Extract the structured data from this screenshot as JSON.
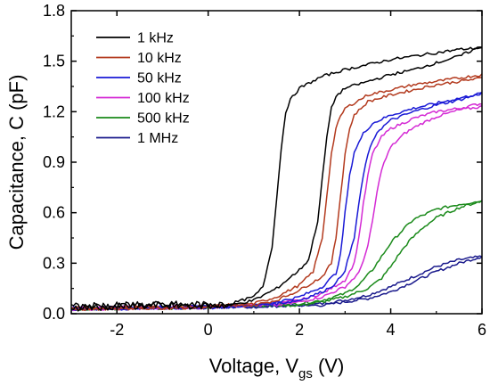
{
  "chart_data": {
    "type": "line",
    "xlabel": {
      "main": "Voltage, V",
      "sub": "gs",
      "unit": " (V)"
    },
    "ylabel": "Capacitance, C (pF)",
    "xlim": [
      -3,
      6
    ],
    "ylim": [
      0,
      1.8
    ],
    "xticks": [
      -2,
      0,
      2,
      4,
      6
    ],
    "yticks": [
      0.0,
      0.3,
      0.6,
      0.9,
      1.2,
      1.5,
      1.8
    ],
    "ytick_labels": [
      "0.0",
      "0.3",
      "0.6",
      "0.9",
      "1.2",
      "1.5",
      "1.8"
    ],
    "grid": false,
    "legend_position": "top-left",
    "series": [
      {
        "name": "1 kHz",
        "color": "#000000",
        "branches": [
          {
            "x": [
              -3,
              -1,
              0,
              0.5,
              1.0,
              1.2,
              1.4,
              1.5,
              1.6,
              1.7,
              1.8,
              2.0,
              2.5,
              3.0,
              3.5,
              4.0,
              4.5,
              5.0,
              5.5,
              6.0
            ],
            "y": [
              0.04,
              0.05,
              0.05,
              0.06,
              0.1,
              0.16,
              0.4,
              0.68,
              0.98,
              1.2,
              1.27,
              1.34,
              1.41,
              1.45,
              1.48,
              1.51,
              1.53,
              1.55,
              1.57,
              1.58
            ]
          },
          {
            "x": [
              -3,
              -1,
              0,
              0.5,
              1.0,
              1.5,
              2.0,
              2.2,
              2.4,
              2.5,
              2.6,
              2.7,
              2.8,
              3.0,
              3.5,
              4.0,
              4.5,
              5.0,
              5.5,
              6.0
            ],
            "y": [
              0.04,
              0.05,
              0.05,
              0.05,
              0.08,
              0.15,
              0.26,
              0.32,
              0.55,
              0.8,
              1.05,
              1.22,
              1.29,
              1.34,
              1.38,
              1.42,
              1.45,
              1.49,
              1.53,
              1.59
            ]
          }
        ]
      },
      {
        "name": "10 kHz",
        "color": "#b33a1e",
        "branches": [
          {
            "x": [
              -3,
              0,
              1.0,
              1.5,
              2.0,
              2.3,
              2.5,
              2.6,
              2.7,
              2.8,
              2.9,
              3.0,
              3.5,
              4.0,
              4.5,
              5.0,
              5.5,
              6.0
            ],
            "y": [
              0.03,
              0.04,
              0.06,
              0.1,
              0.17,
              0.25,
              0.45,
              0.7,
              0.95,
              1.1,
              1.17,
              1.22,
              1.3,
              1.33,
              1.36,
              1.38,
              1.4,
              1.42
            ]
          },
          {
            "x": [
              -3,
              0,
              1.0,
              1.5,
              2.0,
              2.5,
              2.7,
              2.8,
              2.9,
              3.0,
              3.1,
              3.2,
              3.5,
              4.0,
              4.5,
              5.0,
              5.5,
              6.0
            ],
            "y": [
              0.03,
              0.04,
              0.05,
              0.08,
              0.14,
              0.22,
              0.3,
              0.45,
              0.7,
              0.95,
              1.1,
              1.18,
              1.26,
              1.3,
              1.33,
              1.36,
              1.38,
              1.4
            ]
          }
        ]
      },
      {
        "name": "50 kHz",
        "color": "#1a1ad6",
        "branches": [
          {
            "x": [
              -3,
              0,
              1.0,
              1.5,
              2.0,
              2.5,
              2.8,
              2.9,
              3.0,
              3.1,
              3.2,
              3.4,
              3.6,
              4.0,
              4.5,
              5.0,
              5.5,
              6.0
            ],
            "y": [
              0.03,
              0.04,
              0.05,
              0.07,
              0.1,
              0.16,
              0.24,
              0.35,
              0.6,
              0.82,
              0.96,
              1.07,
              1.13,
              1.18,
              1.22,
              1.25,
              1.28,
              1.31
            ]
          },
          {
            "x": [
              -3,
              0,
              1.0,
              1.5,
              2.0,
              2.5,
              2.8,
              3.0,
              3.2,
              3.3,
              3.4,
              3.5,
              3.7,
              4.0,
              4.5,
              5.0,
              5.5,
              6.0
            ],
            "y": [
              0.03,
              0.04,
              0.05,
              0.06,
              0.08,
              0.13,
              0.18,
              0.26,
              0.45,
              0.65,
              0.82,
              0.95,
              1.08,
              1.15,
              1.2,
              1.24,
              1.27,
              1.31
            ]
          }
        ]
      },
      {
        "name": "100 kHz",
        "color": "#d42ad4",
        "branches": [
          {
            "x": [
              -3,
              0,
              1.0,
              1.5,
              2.0,
              2.5,
              3.0,
              3.2,
              3.3,
              3.4,
              3.5,
              3.6,
              3.8,
              4.0,
              4.5,
              5.0,
              5.5,
              6.0
            ],
            "y": [
              0.03,
              0.04,
              0.05,
              0.06,
              0.08,
              0.12,
              0.2,
              0.3,
              0.45,
              0.65,
              0.82,
              0.95,
              1.05,
              1.1,
              1.16,
              1.2,
              1.22,
              1.25
            ]
          },
          {
            "x": [
              -3,
              0,
              1.0,
              1.5,
              2.0,
              2.5,
              3.0,
              3.3,
              3.5,
              3.6,
              3.7,
              3.8,
              4.0,
              4.3,
              4.6,
              5.0,
              5.5,
              6.0
            ],
            "y": [
              0.03,
              0.04,
              0.05,
              0.05,
              0.07,
              0.1,
              0.16,
              0.24,
              0.4,
              0.55,
              0.72,
              0.86,
              0.99,
              1.07,
              1.12,
              1.17,
              1.21,
              1.23
            ]
          }
        ]
      },
      {
        "name": "500 kHz",
        "color": "#1a8a1a",
        "branches": [
          {
            "x": [
              -3,
              0,
              1.0,
              2.0,
              2.5,
              3.0,
              3.3,
              3.6,
              3.8,
              4.0,
              4.2,
              4.5,
              5.0,
              5.5,
              6.0
            ],
            "y": [
              0.03,
              0.04,
              0.05,
              0.06,
              0.08,
              0.12,
              0.17,
              0.26,
              0.34,
              0.42,
              0.48,
              0.56,
              0.62,
              0.65,
              0.67
            ]
          },
          {
            "x": [
              -3,
              0,
              1.0,
              2.0,
              2.5,
              3.0,
              3.5,
              3.8,
              4.0,
              4.2,
              4.4,
              4.7,
              5.0,
              5.5,
              6.0
            ],
            "y": [
              0.03,
              0.04,
              0.05,
              0.05,
              0.07,
              0.1,
              0.15,
              0.21,
              0.28,
              0.36,
              0.43,
              0.51,
              0.57,
              0.63,
              0.67
            ]
          }
        ]
      },
      {
        "name": "1 MHz",
        "color": "#1a1a8c",
        "branches": [
          {
            "x": [
              -3,
              0,
              1.0,
              2.0,
              2.5,
              3.0,
              3.5,
              4.0,
              4.5,
              5.0,
              5.5,
              6.0
            ],
            "y": [
              0.03,
              0.04,
              0.04,
              0.05,
              0.06,
              0.08,
              0.11,
              0.16,
              0.22,
              0.28,
              0.32,
              0.34
            ]
          },
          {
            "x": [
              -3,
              0,
              1.0,
              2.0,
              2.5,
              3.0,
              3.5,
              4.0,
              4.5,
              5.0,
              5.5,
              6.0
            ],
            "y": [
              0.03,
              0.04,
              0.04,
              0.05,
              0.05,
              0.07,
              0.09,
              0.13,
              0.19,
              0.25,
              0.3,
              0.34
            ]
          }
        ]
      }
    ]
  }
}
